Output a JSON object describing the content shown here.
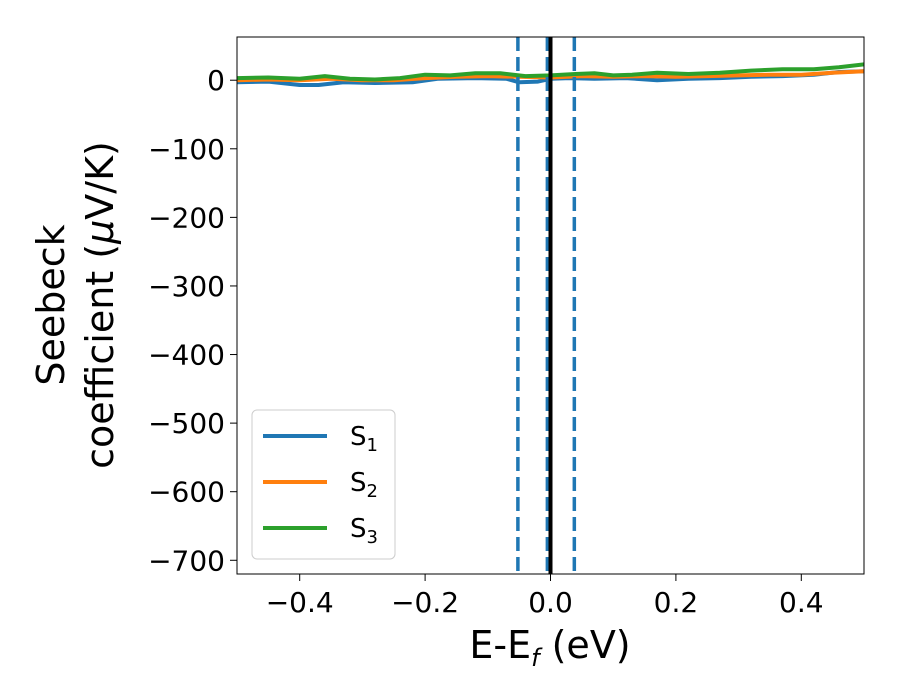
{
  "chart_data": {
    "type": "line",
    "xlabel_main": "E-E",
    "xlabel_sub": "f",
    "xlabel_unit": " (eV)",
    "ylabel_line1": "Seebeck",
    "ylabel_line2_pre": "coefficient  (",
    "ylabel_line2_mu": "μ",
    "ylabel_line2_post": "V/K)",
    "xlim": [
      -0.5,
      0.5
    ],
    "ylim": [
      -720,
      63
    ],
    "xticks": [
      -0.4,
      -0.2,
      0.0,
      0.2,
      0.4
    ],
    "xtick_labels": [
      "−0.4",
      "−0.2",
      "0.0",
      "0.2",
      "0.4"
    ],
    "yticks": [
      0,
      -100,
      -200,
      -300,
      -400,
      -500,
      -600,
      -700
    ],
    "ytick_labels": [
      "0",
      "−100",
      "−200",
      "−300",
      "−400",
      "−500",
      "−600",
      "−700"
    ],
    "legend_placement": "lower-left",
    "grid": false,
    "series": [
      {
        "name_main": "S",
        "name_sub": "1",
        "color": "#1f77b4",
        "x": [
          -0.5,
          -0.45,
          -0.4,
          -0.37,
          -0.33,
          -0.28,
          -0.22,
          -0.18,
          -0.12,
          -0.07,
          -0.05,
          -0.02,
          0.0,
          0.03,
          0.07,
          0.12,
          0.17,
          0.22,
          0.27,
          0.32,
          0.37,
          0.42,
          0.46,
          0.5
        ],
        "y": [
          -3,
          -2,
          -7,
          -7,
          -3,
          -4,
          -3,
          2,
          3,
          2,
          -3,
          -2,
          2,
          3,
          2,
          3,
          0,
          2,
          3,
          5,
          6,
          8,
          12,
          13
        ]
      },
      {
        "name_main": "S",
        "name_sub": "2",
        "color": "#ff7f0e",
        "x": [
          -0.5,
          -0.45,
          -0.4,
          -0.35,
          -0.3,
          -0.25,
          -0.2,
          -0.15,
          -0.1,
          -0.05,
          0.0,
          0.05,
          0.1,
          0.15,
          0.2,
          0.25,
          0.3,
          0.35,
          0.4,
          0.45,
          0.5
        ],
        "y": [
          0,
          1,
          0,
          2,
          0,
          0,
          3,
          5,
          6,
          5,
          4,
          6,
          5,
          6,
          5,
          6,
          7,
          8,
          8,
          11,
          13
        ]
      },
      {
        "name_main": "S",
        "name_sub": "3",
        "color": "#2ca02c",
        "x": [
          -0.5,
          -0.45,
          -0.4,
          -0.36,
          -0.32,
          -0.28,
          -0.24,
          -0.2,
          -0.16,
          -0.12,
          -0.08,
          -0.04,
          0.0,
          0.04,
          0.07,
          0.1,
          0.13,
          0.17,
          0.22,
          0.27,
          0.32,
          0.37,
          0.42,
          0.46,
          0.5
        ],
        "y": [
          3,
          4,
          2,
          6,
          2,
          1,
          3,
          8,
          7,
          10,
          10,
          6,
          7,
          9,
          10,
          7,
          8,
          11,
          9,
          11,
          14,
          16,
          16,
          19,
          23
        ]
      }
    ],
    "vlines": [
      {
        "x": -0.052,
        "style": "dashed",
        "color": "#1f77b4"
      },
      {
        "x": -0.005,
        "style": "dashed",
        "color": "#1f77b4"
      },
      {
        "x": 0.038,
        "style": "dashed",
        "color": "#1f77b4"
      },
      {
        "x": 0.0,
        "style": "solid",
        "color": "#000000"
      }
    ]
  }
}
